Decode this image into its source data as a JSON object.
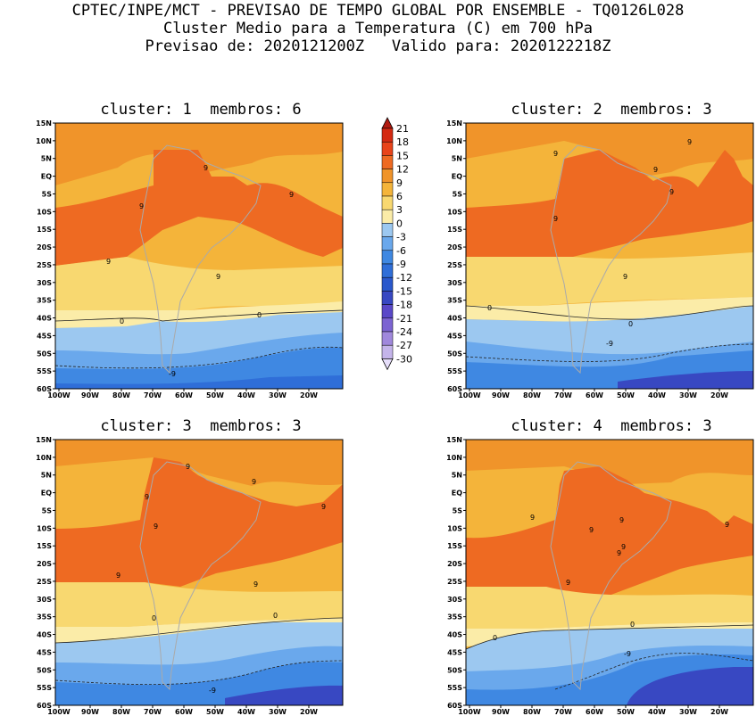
{
  "header": {
    "line1": "CPTEC/INPE/MCT - PREVISAO DE TEMPO GLOBAL POR ENSEMBLE - TQ0126L028",
    "line2": "Cluster Medio para a Temperatura (C) em 700 hPa",
    "line3": "Previsao de: 2020121200Z   Valido para: 2020122218Z"
  },
  "panels": [
    {
      "title": "cluster: 1  membros: 6"
    },
    {
      "title": "cluster: 2  membros: 3"
    },
    {
      "title": "cluster: 3  membros: 3"
    },
    {
      "title": "cluster: 4  membros: 3"
    }
  ],
  "lat_labels": [
    "15N",
    "10N",
    "5N",
    "EQ",
    "5S",
    "10S",
    "15S",
    "20S",
    "25S",
    "30S",
    "35S",
    "40S",
    "45S",
    "50S",
    "55S",
    "60S"
  ],
  "lon_labels": [
    "100W",
    "90W",
    "80W",
    "70W",
    "60W",
    "50W",
    "40W",
    "30W",
    "20W"
  ],
  "colorbar": {
    "labels": [
      "21",
      "18",
      "15",
      "12",
      "9",
      "6",
      "3",
      "0",
      "-3",
      "-6",
      "-9",
      "-12",
      "-15",
      "-18",
      "-21",
      "-24",
      "-27",
      "-30"
    ],
    "colors": [
      "#b01a10",
      "#d42a12",
      "#e8441a",
      "#ee6a22",
      "#f0942a",
      "#f4b43a",
      "#f8d870",
      "#fbeca8",
      "#9cc8f0",
      "#6aa8ec",
      "#3f88e2",
      "#2f6ed8",
      "#2a58cc",
      "#3848c2",
      "#5a48c8",
      "#7c64d2",
      "#a088dc",
      "#c4b4ea",
      "#e6defa"
    ]
  },
  "contour_labels": {
    "panel1": [
      "9",
      "9",
      "9",
      "9",
      "9",
      "9",
      "0",
      "0",
      "-9"
    ],
    "panel2": [
      "9",
      "9",
      "9",
      "9",
      "9",
      "9",
      "0",
      "0",
      "-9"
    ],
    "panel3": [
      "9",
      "9",
      "9",
      "9",
      "9",
      "9",
      "0",
      "0",
      "-9"
    ],
    "panel4": [
      "9",
      "9",
      "9",
      "9",
      "9",
      "9",
      "9",
      "0",
      "0",
      "-9"
    ]
  }
}
